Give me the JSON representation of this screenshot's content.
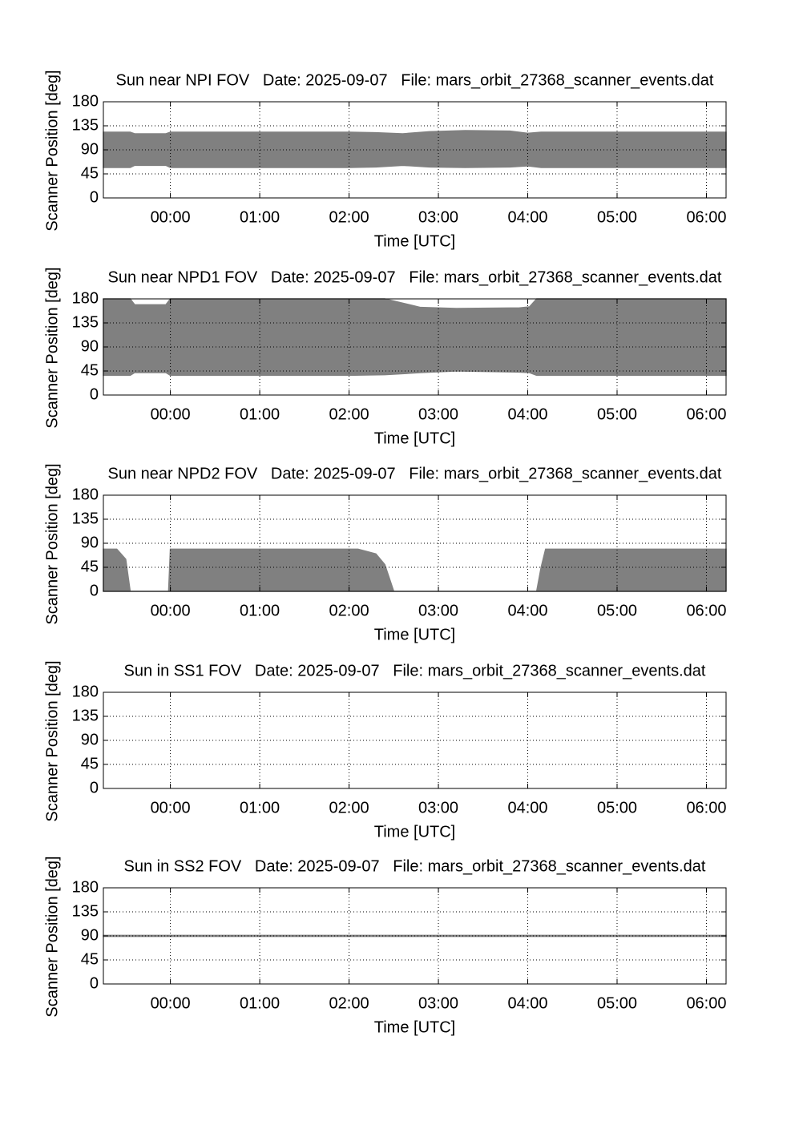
{
  "chart_data": [
    {
      "type": "range-area",
      "title": "Sun near NPI FOV   Date: 2025-09-07   File: mars_orbit_27368_scanner_events.dat",
      "xlabel": "Time [UTC]",
      "ylabel": "Scanner Position [deg]",
      "color": "#808080",
      "grid": true,
      "xlim": [
        -0.75,
        6.22
      ],
      "ylim": [
        0,
        180
      ],
      "xticks": [
        {
          "value": 0,
          "label": "00:00"
        },
        {
          "value": 1,
          "label": "01:00"
        },
        {
          "value": 2,
          "label": "02:00"
        },
        {
          "value": 3,
          "label": "03:00"
        },
        {
          "value": 4,
          "label": "04:00"
        },
        {
          "value": 5,
          "label": "05:00"
        },
        {
          "value": 6,
          "label": "06:00"
        }
      ],
      "yticks": [
        0,
        45,
        90,
        135,
        180
      ],
      "x": [
        -0.75,
        -0.45,
        -0.4,
        -0.05,
        0,
        1,
        2,
        2.3,
        2.6,
        2.9,
        3.3,
        3.8,
        4.0,
        4.15,
        5,
        6.22
      ],
      "high": [
        123,
        123,
        120,
        120,
        123,
        123,
        123,
        122,
        120,
        124,
        126,
        125,
        121,
        123,
        123,
        123
      ],
      "low": [
        57,
        57,
        61,
        61,
        57,
        57,
        57,
        58,
        61,
        58,
        57,
        58,
        60,
        57,
        57,
        57
      ]
    },
    {
      "type": "range-area",
      "title": "Sun near NPD1 FOV   Date: 2025-09-07   File: mars_orbit_27368_scanner_events.dat",
      "xlabel": "Time [UTC]",
      "ylabel": "Scanner Position [deg]",
      "color": "#808080",
      "grid": true,
      "xlim": [
        -0.75,
        6.22
      ],
      "ylim": [
        0,
        180
      ],
      "xticks": [
        {
          "value": 0,
          "label": "00:00"
        },
        {
          "value": 1,
          "label": "01:00"
        },
        {
          "value": 2,
          "label": "02:00"
        },
        {
          "value": 3,
          "label": "03:00"
        },
        {
          "value": 4,
          "label": "04:00"
        },
        {
          "value": 5,
          "label": "05:00"
        },
        {
          "value": 6,
          "label": "06:00"
        }
      ],
      "yticks": [
        0,
        45,
        90,
        135,
        180
      ],
      "x": [
        -0.75,
        -0.45,
        -0.4,
        -0.05,
        0,
        1,
        2,
        2.4,
        2.6,
        2.8,
        3.2,
        3.9,
        4.02,
        4.1,
        5,
        6.22
      ],
      "high": [
        180,
        180,
        169,
        169,
        180,
        180,
        180,
        180,
        172,
        164,
        162,
        163,
        165,
        180,
        180,
        180
      ],
      "low": [
        37,
        37,
        42,
        42,
        37,
        37,
        37,
        38,
        40,
        42,
        45,
        43,
        42,
        37,
        37,
        37
      ]
    },
    {
      "type": "range-area",
      "title": "Sun near NPD2 FOV   Date: 2025-09-07   File: mars_orbit_27368_scanner_events.dat",
      "xlabel": "Time [UTC]",
      "ylabel": "Scanner Position [deg]",
      "color": "#808080",
      "grid": true,
      "xlim": [
        -0.75,
        6.22
      ],
      "ylim": [
        0,
        180
      ],
      "xticks": [
        {
          "value": 0,
          "label": "00:00"
        },
        {
          "value": 1,
          "label": "01:00"
        },
        {
          "value": 2,
          "label": "02:00"
        },
        {
          "value": 3,
          "label": "03:00"
        },
        {
          "value": 4,
          "label": "04:00"
        },
        {
          "value": 5,
          "label": "05:00"
        },
        {
          "value": 6,
          "label": "06:00"
        }
      ],
      "yticks": [
        0,
        45,
        90,
        135,
        180
      ],
      "x": [
        -0.75,
        -0.6,
        -0.5,
        -0.45,
        -0.02,
        0.0,
        2.1,
        2.3,
        2.4,
        2.5,
        4.1,
        4.15,
        4.2,
        6.22
      ],
      "high": [
        79,
        79,
        60,
        0,
        0,
        79,
        79,
        70,
        50,
        0,
        0,
        45,
        79,
        79
      ],
      "low": [
        0,
        0,
        0,
        0,
        0,
        0,
        0,
        0,
        0,
        0,
        0,
        0,
        0,
        0
      ]
    },
    {
      "type": "range-area",
      "title": "Sun in SS1 FOV   Date: 2025-09-07   File: mars_orbit_27368_scanner_events.dat",
      "xlabel": "Time [UTC]",
      "ylabel": "Scanner Position [deg]",
      "color": "#808080",
      "grid": true,
      "xlim": [
        -0.75,
        6.22
      ],
      "ylim": [
        0,
        180
      ],
      "xticks": [
        {
          "value": 0,
          "label": "00:00"
        },
        {
          "value": 1,
          "label": "01:00"
        },
        {
          "value": 2,
          "label": "02:00"
        },
        {
          "value": 3,
          "label": "03:00"
        },
        {
          "value": 4,
          "label": "04:00"
        },
        {
          "value": 5,
          "label": "05:00"
        },
        {
          "value": 6,
          "label": "06:00"
        }
      ],
      "yticks": [
        0,
        45,
        90,
        135,
        180
      ],
      "x": [],
      "high": [],
      "low": []
    },
    {
      "type": "range-area",
      "title": "Sun in SS2 FOV   Date: 2025-09-07   File: mars_orbit_27368_scanner_events.dat",
      "xlabel": "Time [UTC]",
      "ylabel": "Scanner Position [deg]",
      "color": "#808080",
      "grid": true,
      "xlim": [
        -0.75,
        6.22
      ],
      "ylim": [
        0,
        180
      ],
      "xticks": [
        {
          "value": 0,
          "label": "00:00"
        },
        {
          "value": 1,
          "label": "01:00"
        },
        {
          "value": 2,
          "label": "02:00"
        },
        {
          "value": 3,
          "label": "03:00"
        },
        {
          "value": 4,
          "label": "04:00"
        },
        {
          "value": 5,
          "label": "05:00"
        },
        {
          "value": 6,
          "label": "06:00"
        }
      ],
      "yticks": [
        0,
        45,
        90,
        135,
        180
      ],
      "x": [
        -0.75,
        6.22
      ],
      "high": [
        91,
        91
      ],
      "low": [
        89,
        89
      ]
    }
  ]
}
